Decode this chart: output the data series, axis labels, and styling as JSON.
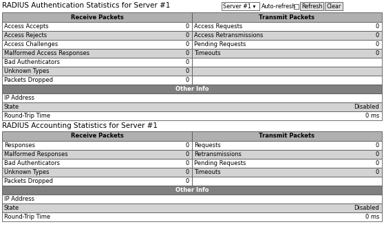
{
  "title1": "RADIUS Authentication Statistics for Server #1",
  "title2": "RADIUS Accounting Statistics for Server #1",
  "header_bg": "#b0b0b0",
  "row_bg_white": "#ffffff",
  "row_bg_gray": "#d3d3d3",
  "other_info_bg": "#808080",
  "border_color": "#555555",
  "text_color": "#000000",
  "bg_color": "#ffffff",
  "auth_receive": [
    [
      "Access Accepts",
      "0"
    ],
    [
      "Access Rejects",
      "0"
    ],
    [
      "Access Challenges",
      "0"
    ],
    [
      "Malformed Access Responses",
      "0"
    ],
    [
      "Bad Authenticators",
      "0"
    ],
    [
      "Unknown Types",
      "0"
    ],
    [
      "Packets Dropped",
      "0"
    ]
  ],
  "auth_transmit": [
    [
      "Access Requests",
      "0"
    ],
    [
      "Access Retransmissions",
      "0"
    ],
    [
      "Pending Requests",
      "0"
    ],
    [
      "Timeouts",
      "0"
    ],
    [
      "",
      ""
    ],
    [
      "",
      ""
    ],
    [
      "",
      ""
    ]
  ],
  "auth_other": [
    [
      "IP Address",
      ""
    ],
    [
      "State",
      "Disabled"
    ],
    [
      "Round-Trip Time",
      "0 ms"
    ]
  ],
  "acc_receive": [
    [
      "Responses",
      "0"
    ],
    [
      "Malformed Responses",
      "0"
    ],
    [
      "Bad Authenticators",
      "0"
    ],
    [
      "Unknown Types",
      "0"
    ],
    [
      "Packets Dropped",
      "0"
    ]
  ],
  "acc_transmit": [
    [
      "Requests",
      "0"
    ],
    [
      "Retransmissions",
      "0"
    ],
    [
      "Pending Requests",
      "0"
    ],
    [
      "Timeouts",
      "0"
    ],
    [
      "",
      ""
    ]
  ],
  "acc_other": [
    [
      "IP Address",
      ""
    ],
    [
      "State",
      "Disabled"
    ],
    [
      "Round-Trip Time",
      "0 ms"
    ]
  ],
  "figsize": [
    5.58,
    3.52
  ],
  "dpi": 100
}
